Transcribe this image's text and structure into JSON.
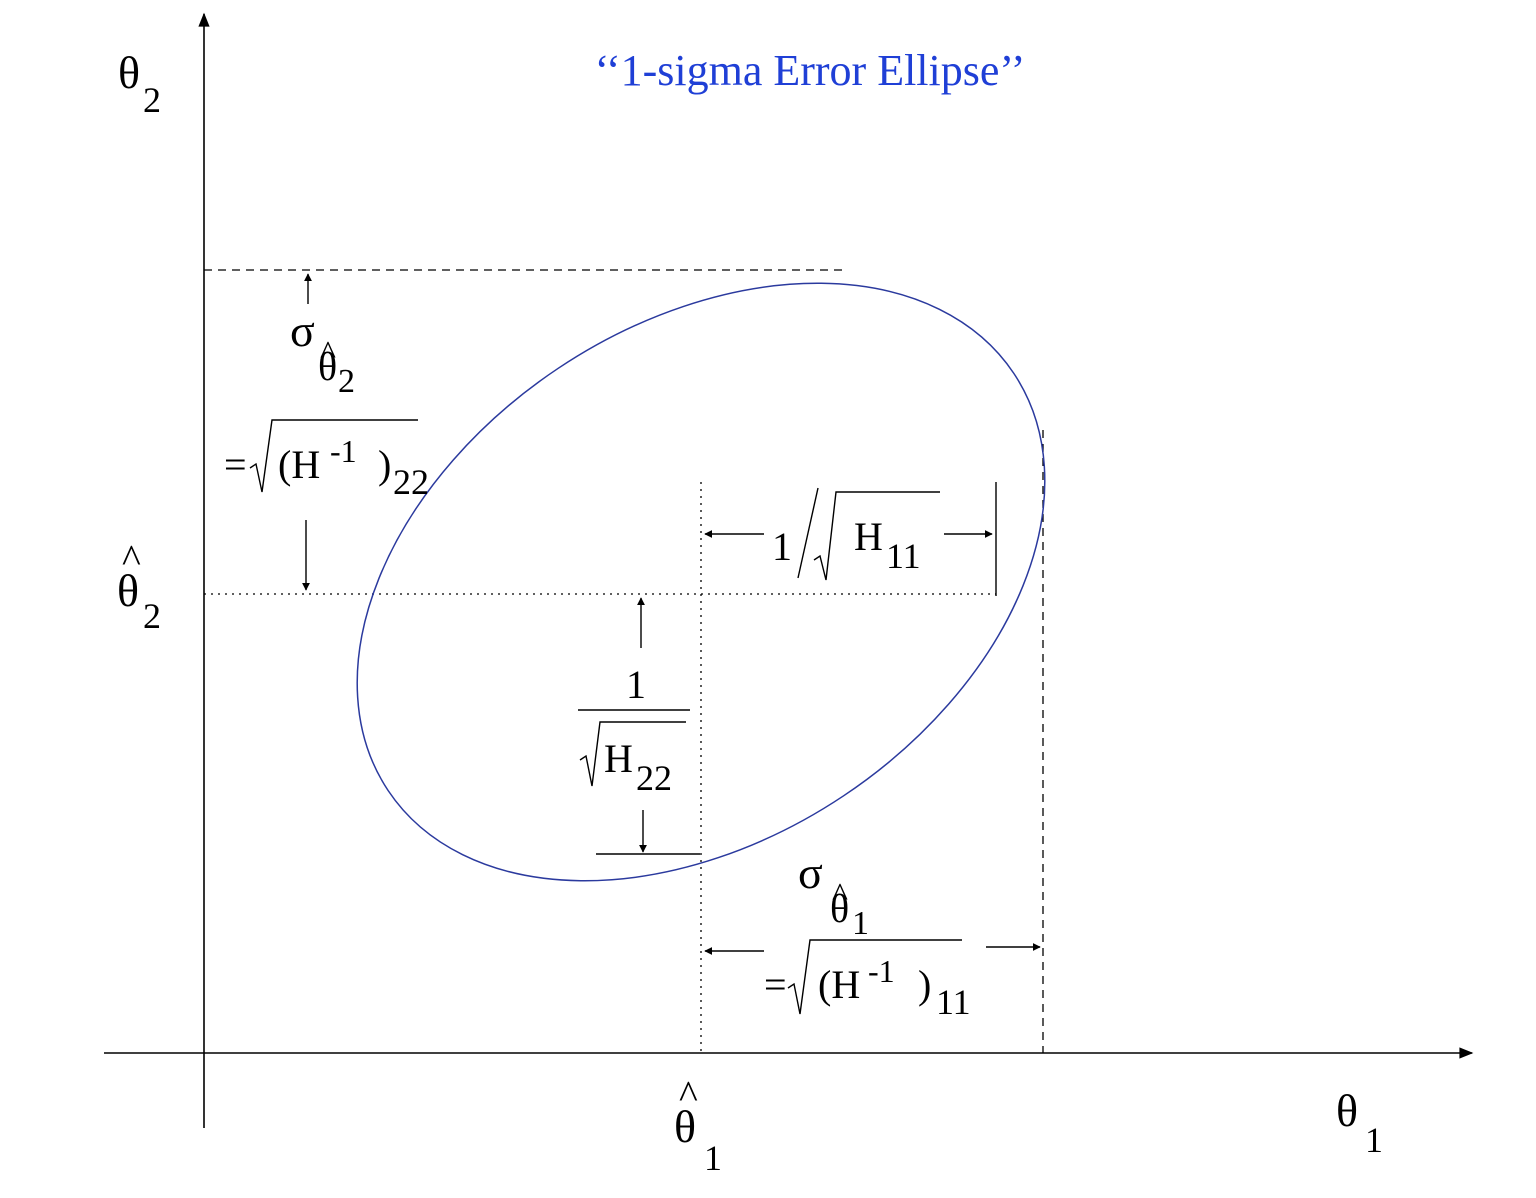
{
  "title": "‘‘1-sigma Error Ellipse’’",
  "colors": {
    "title": "#1f3fd6",
    "ellipse": "#2b3a9e",
    "ink": "#000000"
  },
  "axes": {
    "y_symbol": "θ",
    "y_sub": "2",
    "x_symbol": "θ",
    "x_sub": "1"
  },
  "estimates": {
    "theta2_hat_hat": "^",
    "theta2_hat_symbol": "θ",
    "theta2_hat_sub": "2",
    "theta1_hat_hat": "^",
    "theta1_hat_symbol": "θ",
    "theta1_hat_sub": "1"
  },
  "sigma2": {
    "sigma": "σ",
    "hat": "^",
    "theta": "θ",
    "sub": "2",
    "eq": "=",
    "expr_open": "(H",
    "expr_sup": "-1",
    "expr_close": ")",
    "expr_sub": "22"
  },
  "sigma1": {
    "sigma": "σ",
    "hat": "^",
    "theta": "θ",
    "sub": "1",
    "eq": "=",
    "expr_open": "(H",
    "expr_sup": "-1",
    "expr_close": ")",
    "expr_sub": "11"
  },
  "h11": {
    "numerator": "1",
    "H": "H",
    "sub": "11"
  },
  "h22": {
    "numerator": "1",
    "H": "H",
    "sub": "22"
  }
}
